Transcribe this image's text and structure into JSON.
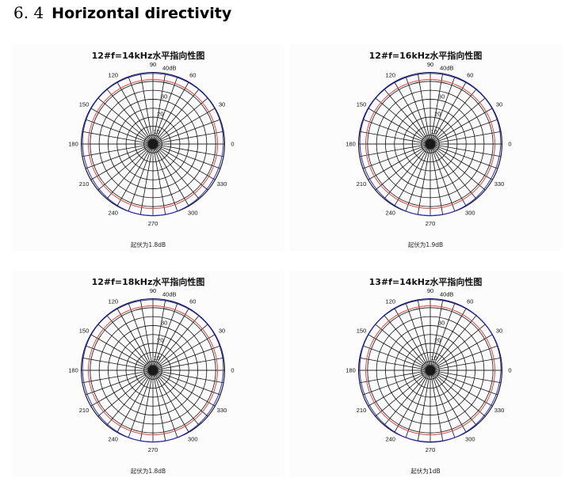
{
  "section": {
    "number": "6. 4",
    "title": "Horizontal directivity"
  },
  "polar_common": {
    "angle_labels": [
      "0",
      "30",
      "60",
      "90",
      "120",
      "150",
      "180",
      "210",
      "240",
      "270",
      "300",
      "330"
    ],
    "radial_labels": [
      "10",
      "20",
      "30",
      "40dB"
    ],
    "colors": {
      "grid": "#111111",
      "series_red": "#e03030",
      "series_blue": "#2b2bc8",
      "background": "#fcfcfc"
    }
  },
  "panels": [
    {
      "title": "12#f=14kHz水平指向性图",
      "caption": "起伏为1.8dB"
    },
    {
      "title": "12#f=16kHz水平指向性图",
      "caption": "起伏为1.9dB"
    },
    {
      "title": "12#f=18kHz水平指向性图",
      "caption": "起伏为1.8dB"
    },
    {
      "title": "13#f=14kHz水平指向性图",
      "caption": "起伏为1dB"
    }
  ],
  "chart_data": [
    {
      "type": "polar",
      "title": "12#f=14kHz水平指向性图",
      "caption": "起伏为1.8dB",
      "r_range": [
        0,
        40
      ],
      "r_unit": "dB",
      "r_ticks": [
        10,
        20,
        30,
        40
      ],
      "theta_ticks_deg": [
        0,
        30,
        60,
        90,
        120,
        150,
        180,
        210,
        240,
        270,
        300,
        330
      ],
      "grid": true,
      "radial_spokes_every_deg": 10,
      "series": [
        {
          "name": "red",
          "color": "#e03030",
          "r_db_approx": 36.0,
          "shape": "near-circular"
        },
        {
          "name": "blue",
          "color": "#2b2bc8",
          "r_db_approx": 39.5,
          "shape": "near-circular",
          "ripple_db": 1.8
        }
      ]
    },
    {
      "type": "polar",
      "title": "12#f=16kHz水平指向性图",
      "caption": "起伏为1.9dB",
      "r_range": [
        0,
        40
      ],
      "r_unit": "dB",
      "r_ticks": [
        10,
        20,
        30,
        40
      ],
      "theta_ticks_deg": [
        0,
        30,
        60,
        90,
        120,
        150,
        180,
        210,
        240,
        270,
        300,
        330
      ],
      "grid": true,
      "radial_spokes_every_deg": 10,
      "series": [
        {
          "name": "red",
          "color": "#e03030",
          "r_db_approx": 36.0,
          "shape": "near-circular"
        },
        {
          "name": "blue",
          "color": "#2b2bc8",
          "r_db_approx": 39.5,
          "shape": "near-circular",
          "ripple_db": 1.9
        }
      ]
    },
    {
      "type": "polar",
      "title": "12#f=18kHz水平指向性图",
      "caption": "起伏为1.8dB",
      "r_range": [
        0,
        40
      ],
      "r_unit": "dB",
      "r_ticks": [
        10,
        20,
        30,
        40
      ],
      "theta_ticks_deg": [
        0,
        30,
        60,
        90,
        120,
        150,
        180,
        210,
        240,
        270,
        300,
        330
      ],
      "grid": true,
      "radial_spokes_every_deg": 10,
      "series": [
        {
          "name": "red",
          "color": "#e03030",
          "r_db_approx": 36.0,
          "shape": "near-circular"
        },
        {
          "name": "blue",
          "color": "#2b2bc8",
          "r_db_approx": 39.5,
          "shape": "near-circular",
          "ripple_db": 1.8
        }
      ]
    },
    {
      "type": "polar",
      "title": "13#f=14kHz水平指向性图",
      "caption": "起伏为1dB",
      "r_range": [
        0,
        40
      ],
      "r_unit": "dB",
      "r_ticks": [
        10,
        20,
        30,
        40
      ],
      "theta_ticks_deg": [
        0,
        30,
        60,
        90,
        120,
        150,
        180,
        210,
        240,
        270,
        300,
        330
      ],
      "grid": true,
      "radial_spokes_every_deg": 10,
      "series": [
        {
          "name": "red",
          "color": "#e03030",
          "r_db_approx": 36.0,
          "shape": "near-circular"
        },
        {
          "name": "blue",
          "color": "#2b2bc8",
          "r_db_approx": 39.6,
          "shape": "near-circular",
          "ripple_db": 1.0
        }
      ]
    }
  ]
}
